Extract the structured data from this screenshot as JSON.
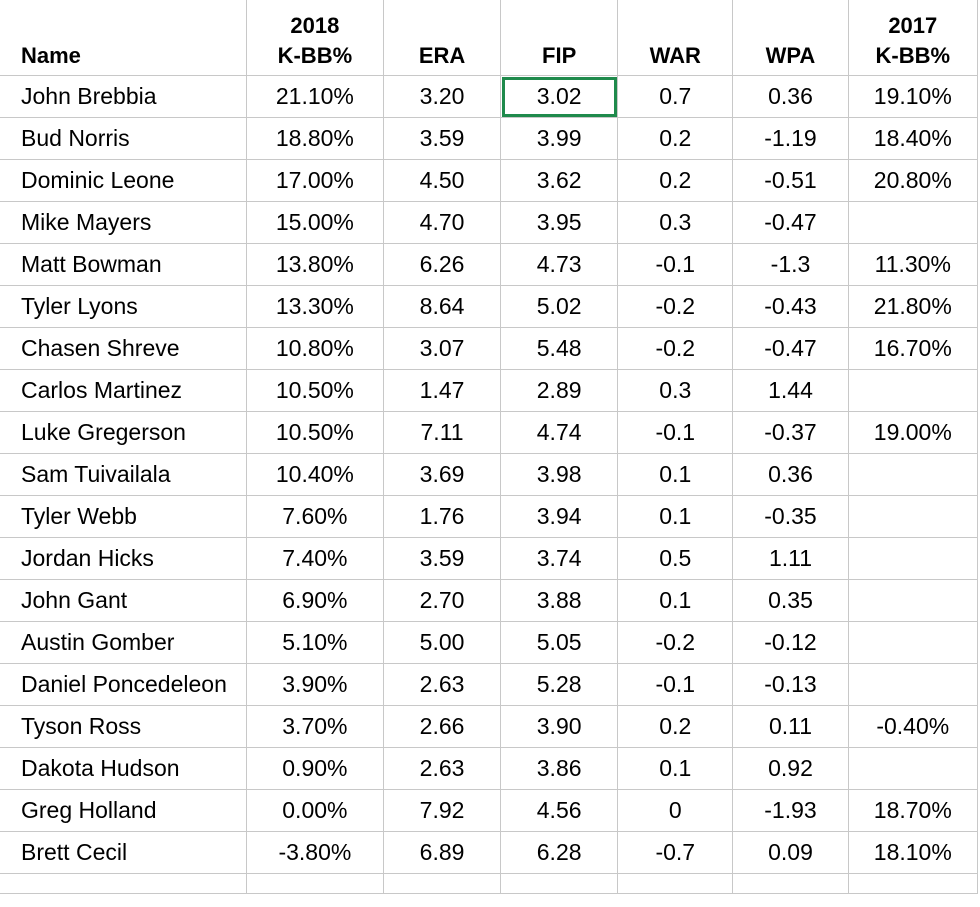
{
  "headers": {
    "name": "Name",
    "k_bb_2018_top": "2018",
    "k_bb_2018_bottom": "K-BB%",
    "era": "ERA",
    "fip": "FIP",
    "war": "WAR",
    "wpa": "WPA",
    "k_bb_2017_top": "2017",
    "k_bb_2017_bottom": "K-BB%"
  },
  "rows": [
    {
      "name": "John Brebbia",
      "k_bb_2018": "21.10%",
      "era": "3.20",
      "fip": "3.02",
      "war": "0.7",
      "wpa": "0.36",
      "k_bb_2017": "19.10%"
    },
    {
      "name": "Bud Norris",
      "k_bb_2018": "18.80%",
      "era": "3.59",
      "fip": "3.99",
      "war": "0.2",
      "wpa": "-1.19",
      "k_bb_2017": "18.40%"
    },
    {
      "name": "Dominic Leone",
      "k_bb_2018": "17.00%",
      "era": "4.50",
      "fip": "3.62",
      "war": "0.2",
      "wpa": "-0.51",
      "k_bb_2017": "20.80%"
    },
    {
      "name": "Mike Mayers",
      "k_bb_2018": "15.00%",
      "era": "4.70",
      "fip": "3.95",
      "war": "0.3",
      "wpa": "-0.47",
      "k_bb_2017": ""
    },
    {
      "name": "Matt Bowman",
      "k_bb_2018": "13.80%",
      "era": "6.26",
      "fip": "4.73",
      "war": "-0.1",
      "wpa": "-1.3",
      "k_bb_2017": "11.30%"
    },
    {
      "name": "Tyler Lyons",
      "k_bb_2018": "13.30%",
      "era": "8.64",
      "fip": "5.02",
      "war": "-0.2",
      "wpa": "-0.43",
      "k_bb_2017": "21.80%"
    },
    {
      "name": "Chasen Shreve",
      "k_bb_2018": "10.80%",
      "era": "3.07",
      "fip": "5.48",
      "war": "-0.2",
      "wpa": "-0.47",
      "k_bb_2017": "16.70%"
    },
    {
      "name": "Carlos Martinez",
      "k_bb_2018": "10.50%",
      "era": "1.47",
      "fip": "2.89",
      "war": "0.3",
      "wpa": "1.44",
      "k_bb_2017": ""
    },
    {
      "name": "Luke Gregerson",
      "k_bb_2018": "10.50%",
      "era": "7.11",
      "fip": "4.74",
      "war": "-0.1",
      "wpa": "-0.37",
      "k_bb_2017": "19.00%"
    },
    {
      "name": "Sam Tuivailala",
      "k_bb_2018": "10.40%",
      "era": "3.69",
      "fip": "3.98",
      "war": "0.1",
      "wpa": "0.36",
      "k_bb_2017": ""
    },
    {
      "name": "Tyler Webb",
      "k_bb_2018": "7.60%",
      "era": "1.76",
      "fip": "3.94",
      "war": "0.1",
      "wpa": "-0.35",
      "k_bb_2017": ""
    },
    {
      "name": "Jordan Hicks",
      "k_bb_2018": "7.40%",
      "era": "3.59",
      "fip": "3.74",
      "war": "0.5",
      "wpa": "1.11",
      "k_bb_2017": ""
    },
    {
      "name": "John Gant",
      "k_bb_2018": "6.90%",
      "era": "2.70",
      "fip": "3.88",
      "war": "0.1",
      "wpa": "0.35",
      "k_bb_2017": ""
    },
    {
      "name": "Austin Gomber",
      "k_bb_2018": "5.10%",
      "era": "5.00",
      "fip": "5.05",
      "war": "-0.2",
      "wpa": "-0.12",
      "k_bb_2017": ""
    },
    {
      "name": "Daniel Poncedeleon",
      "k_bb_2018": "3.90%",
      "era": "2.63",
      "fip": "5.28",
      "war": "-0.1",
      "wpa": "-0.13",
      "k_bb_2017": ""
    },
    {
      "name": "Tyson Ross",
      "k_bb_2018": "3.70%",
      "era": "2.66",
      "fip": "3.90",
      "war": "0.2",
      "wpa": "0.11",
      "k_bb_2017": "-0.40%"
    },
    {
      "name": "Dakota Hudson",
      "k_bb_2018": "0.90%",
      "era": "2.63",
      "fip": "3.86",
      "war": "0.1",
      "wpa": "0.92",
      "k_bb_2017": ""
    },
    {
      "name": "Greg Holland",
      "k_bb_2018": "0.00%",
      "era": "7.92",
      "fip": "4.56",
      "war": "0",
      "wpa": "-1.93",
      "k_bb_2017": "18.70%"
    },
    {
      "name": "Brett Cecil",
      "k_bb_2018": "-3.80%",
      "era": "6.89",
      "fip": "6.28",
      "war": "-0.7",
      "wpa": "0.09",
      "k_bb_2017": "18.10%"
    }
  ],
  "selection": {
    "row": 0,
    "column": "fip",
    "color": "#1f8a4c"
  },
  "colors": {
    "gridline": "#c8c8c8",
    "background": "#ffffff"
  }
}
